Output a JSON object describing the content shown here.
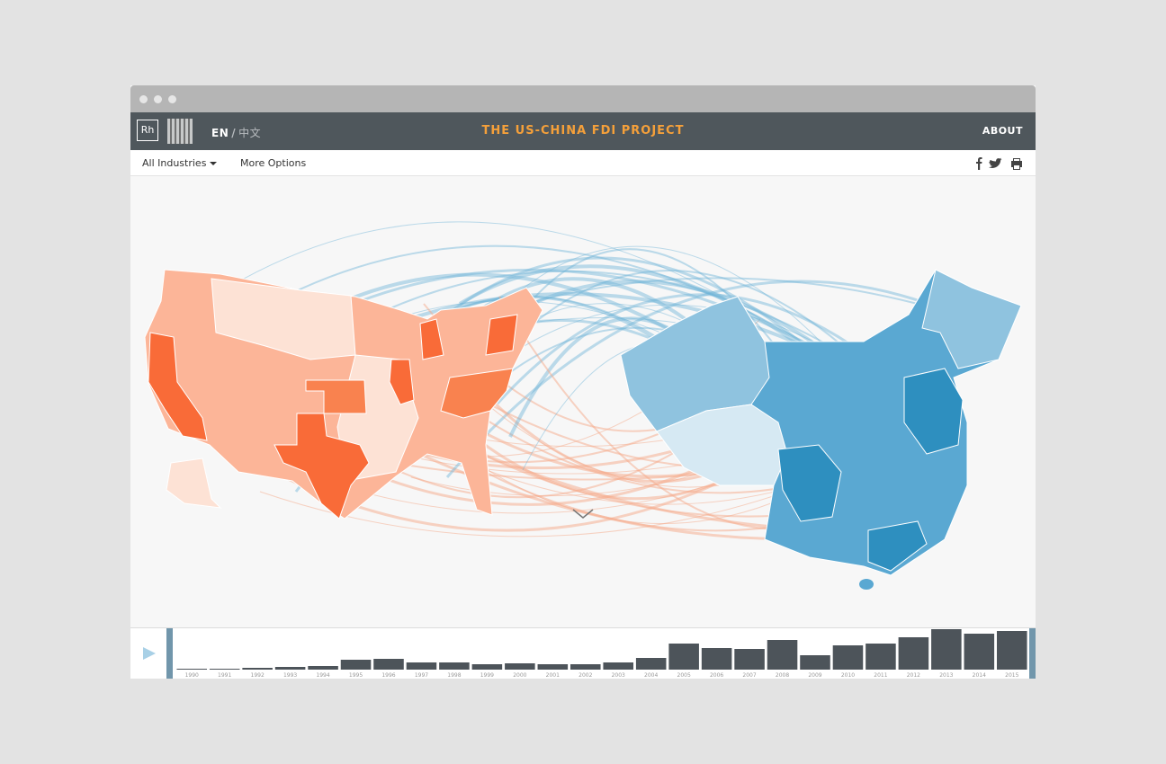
{
  "header": {
    "logo": "Rh",
    "language": {
      "en": "EN",
      "separator": "/",
      "zh": "中文"
    },
    "title": "THE US-CHINA FDI PROJECT",
    "about": "ABOUT"
  },
  "toolbar": {
    "industries": "All Industries",
    "options": "More Options"
  },
  "chart_data": {
    "type": "bar",
    "categories": [
      "1990",
      "1991",
      "1992",
      "1993",
      "1994",
      "1995",
      "1996",
      "1997",
      "1998",
      "1999",
      "2000",
      "2001",
      "2002",
      "2003",
      "2004",
      "2005",
      "2006",
      "2007",
      "2008",
      "2009",
      "2010",
      "2011",
      "2012",
      "2013",
      "2014",
      "2015"
    ],
    "values": [
      1,
      1,
      2,
      3,
      4,
      11,
      12,
      8,
      8,
      6,
      7,
      6,
      6,
      8,
      13,
      29,
      24,
      23,
      33,
      16,
      27,
      29,
      36,
      45,
      40,
      43
    ],
    "color": "#4d545a"
  }
}
